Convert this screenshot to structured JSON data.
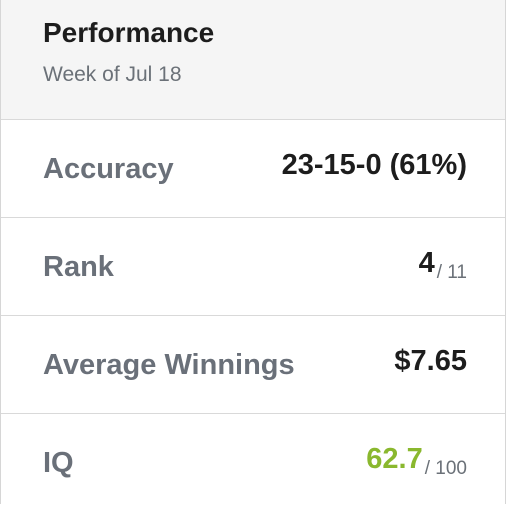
{
  "header": {
    "title": "Performance",
    "subtitle": "Week of Jul 18"
  },
  "rows": [
    {
      "label": "Accuracy",
      "value": "23-15-0 (61%)",
      "suffix": ""
    },
    {
      "label": "Rank",
      "value": "4",
      "suffix": "/ 11"
    },
    {
      "label": "Average Winnings",
      "value": "$7.65",
      "suffix": ""
    },
    {
      "label": "IQ",
      "value": "62.7",
      "suffix": "/ 100"
    }
  ],
  "colors": {
    "iq_value": "#8ab82e"
  }
}
